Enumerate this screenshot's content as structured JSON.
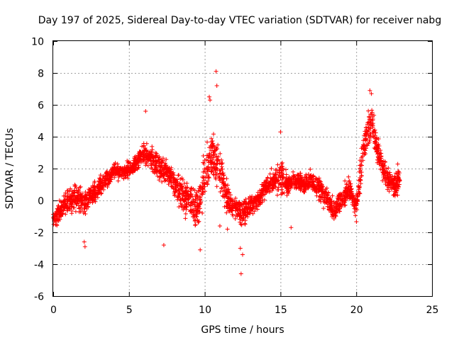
{
  "chart_data": {
    "type": "scatter",
    "title": "Day 197 of 2025, Sidereal Day-to-day VTEC variation (SDTVAR) for receiver nabg",
    "xlabel": "GPS time / hours",
    "ylabel": "SDTVAR / TECUs",
    "xlim": [
      0,
      25
    ],
    "ylim": [
      -6,
      10
    ],
    "xticks": [
      "0",
      "5",
      "10",
      "15",
      "20",
      "25"
    ],
    "yticks": [
      "-6",
      "-4",
      "-2",
      "0",
      "2",
      "4",
      "6",
      "8",
      "10"
    ],
    "grid": true,
    "marker": "+",
    "color": "#ff0000",
    "series": [
      {
        "name": "SDTVAR",
        "trend": [
          [
            0.0,
            -1.2,
            0.6
          ],
          [
            0.5,
            -0.6,
            0.9
          ],
          [
            1.0,
            0.0,
            1.1
          ],
          [
            1.5,
            0.2,
            1.1
          ],
          [
            2.0,
            -0.2,
            1.2
          ],
          [
            2.5,
            0.3,
            1.0
          ],
          [
            3.0,
            0.8,
            0.9
          ],
          [
            3.5,
            1.3,
            0.8
          ],
          [
            4.0,
            1.9,
            0.7
          ],
          [
            4.5,
            1.8,
            0.7
          ],
          [
            5.0,
            1.9,
            0.7
          ],
          [
            5.5,
            2.4,
            0.8
          ],
          [
            6.0,
            3.0,
            1.0
          ],
          [
            6.5,
            2.6,
            0.9
          ],
          [
            7.0,
            2.0,
            1.0
          ],
          [
            7.5,
            1.8,
            1.0
          ],
          [
            8.0,
            1.0,
            1.2
          ],
          [
            8.5,
            0.3,
            1.4
          ],
          [
            9.0,
            0.0,
            1.5
          ],
          [
            9.5,
            -0.5,
            1.8
          ],
          [
            10.0,
            1.5,
            2.0
          ],
          [
            10.5,
            3.0,
            1.8
          ],
          [
            11.0,
            2.0,
            1.8
          ],
          [
            11.5,
            0.0,
            1.5
          ],
          [
            12.0,
            -0.5,
            1.0
          ],
          [
            12.5,
            -0.8,
            1.2
          ],
          [
            13.0,
            -0.3,
            0.8
          ],
          [
            13.5,
            0.0,
            0.8
          ],
          [
            14.0,
            0.8,
            0.8
          ],
          [
            14.5,
            1.2,
            1.0
          ],
          [
            15.0,
            1.5,
            1.4
          ],
          [
            15.5,
            1.0,
            1.0
          ],
          [
            16.0,
            1.3,
            0.8
          ],
          [
            16.5,
            1.0,
            0.8
          ],
          [
            17.0,
            1.3,
            0.8
          ],
          [
            17.5,
            0.8,
            0.9
          ],
          [
            18.0,
            0.2,
            1.0
          ],
          [
            18.5,
            -0.8,
            1.0
          ],
          [
            19.0,
            0.0,
            1.0
          ],
          [
            19.5,
            0.8,
            1.0
          ],
          [
            20.0,
            -0.5,
            1.0
          ],
          [
            20.5,
            3.5,
            1.5
          ],
          [
            21.0,
            5.0,
            1.5
          ],
          [
            21.5,
            2.8,
            1.2
          ],
          [
            22.0,
            1.5,
            1.0
          ],
          [
            22.5,
            0.8,
            1.0
          ],
          [
            22.9,
            1.5,
            1.5
          ]
        ],
        "outliers": [
          [
            10.75,
            8.1
          ],
          [
            10.8,
            7.2
          ],
          [
            10.3,
            6.5
          ],
          [
            10.35,
            6.3
          ],
          [
            12.4,
            -4.6
          ],
          [
            12.5,
            -3.4
          ],
          [
            12.35,
            -3.0
          ],
          [
            7.3,
            -2.8
          ],
          [
            2.1,
            -2.9
          ],
          [
            2.05,
            -2.6
          ],
          [
            9.7,
            -3.1
          ],
          [
            6.1,
            5.6
          ],
          [
            20.9,
            6.9
          ],
          [
            21.0,
            6.7
          ],
          [
            15.0,
            4.3
          ],
          [
            11.5,
            -1.8
          ],
          [
            11.0,
            -1.6
          ],
          [
            14.4,
            2.0
          ],
          [
            13.8,
            -0.1
          ],
          [
            15.7,
            -1.7
          ]
        ]
      }
    ]
  }
}
